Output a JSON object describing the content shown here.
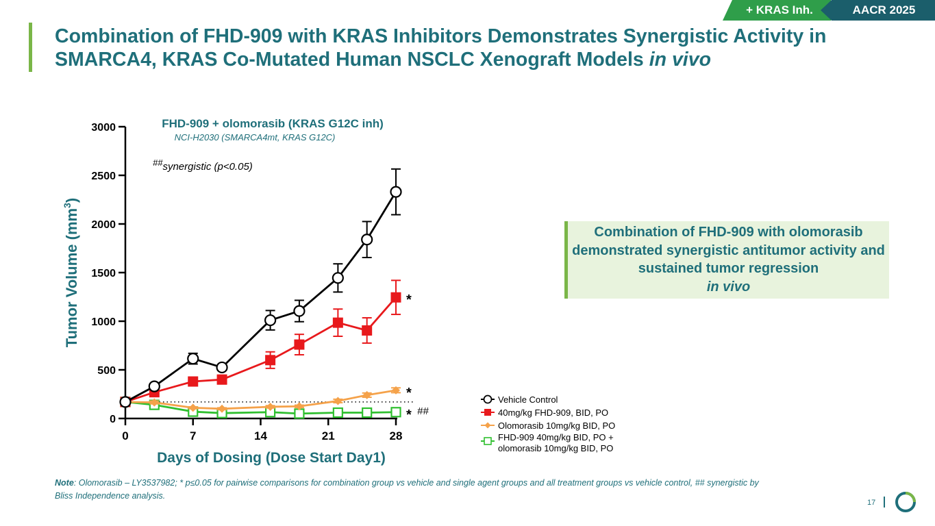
{
  "header": {
    "tag_kras": "+ KRAS Inh.",
    "tag_conference": "AACR 2025",
    "title_main": "Combination of FHD-909 with KRAS Inhibitors Demonstrates Synergistic Activity in SMARCA4, KRAS Co-Mutated Human NSCLC Xenograft Models ",
    "title_italic": "in vivo"
  },
  "callout": {
    "text": "Combination of FHD-909 with olomorasib demonstrated synergistic antitumor activity and sustained tumor regression ",
    "italic": "in vivo"
  },
  "footer": {
    "note_label": "Note",
    "note_text": ": Olomorasib – LY3537982; * p≤0.05 for pairwise comparisons for combination group vs vehicle and single agent groups and all treatment groups vs vehicle control, ## synergistic by Bliss Independence analysis.",
    "page_number": "17"
  },
  "chart_data": {
    "type": "line",
    "title": "FHD-909 + olomorasib (KRAS G12C inh)",
    "subtitle": "NCI-H2030 (SMARCA4mt, KRAS G12C)",
    "annotation_mark": "##",
    "annotation_text": "synergistic (p<0.05)",
    "xlabel": "Days of Dosing (Dose Start Day1)",
    "ylabel_text": "Tumor Volume (mm",
    "ylabel_sup": "3",
    "ylabel_close": ")",
    "xlim": [
      0,
      28
    ],
    "ylim": [
      0,
      3000
    ],
    "x_ticks": [
      0,
      7,
      14,
      21,
      28
    ],
    "y_ticks": [
      0,
      500,
      1000,
      1500,
      2000,
      2500,
      3000
    ],
    "baseline_dotted": 170,
    "series": [
      {
        "name": "Vehicle Control",
        "color": "#000000",
        "marker": "circle-open",
        "x": [
          0,
          3,
          7,
          10,
          15,
          18,
          22,
          25,
          28
        ],
        "y": [
          170,
          330,
          615,
          525,
          1010,
          1105,
          1445,
          1840,
          2330
        ],
        "err": [
          20,
          30,
          55,
          30,
          100,
          110,
          145,
          185,
          235
        ],
        "end_label": ""
      },
      {
        "name": "40mg/kg FHD-909, BID, PO",
        "color": "#e8191c",
        "marker": "square-filled",
        "x": [
          0,
          3,
          7,
          10,
          15,
          18,
          22,
          25,
          28
        ],
        "y": [
          170,
          270,
          380,
          400,
          600,
          760,
          985,
          905,
          1245
        ],
        "err": [
          20,
          40,
          45,
          45,
          85,
          105,
          140,
          130,
          175
        ],
        "end_label": "*"
      },
      {
        "name": "Olomorasib 10mg/kg BID, PO",
        "color": "#f5a24a",
        "marker": "diamond-filled",
        "x": [
          0,
          3,
          7,
          10,
          15,
          18,
          22,
          25,
          28
        ],
        "y": [
          170,
          165,
          110,
          100,
          120,
          125,
          180,
          240,
          290
        ],
        "err": [
          15,
          15,
          10,
          10,
          12,
          12,
          18,
          22,
          25
        ],
        "end_label": "*"
      },
      {
        "name": "FHD-909 40mg/kg BID, PO + olomorasib 10mg/kg BID, PO",
        "legend_line1": "FHD-909 40mg/kg BID, PO +",
        "legend_line2": "olomorasib 10mg/kg BID, PO",
        "color": "#2fbf2f",
        "marker": "square-open",
        "x": [
          0,
          3,
          7,
          10,
          15,
          18,
          22,
          25,
          28
        ],
        "y": [
          170,
          140,
          70,
          55,
          65,
          50,
          60,
          60,
          65
        ],
        "err": [
          15,
          15,
          10,
          8,
          8,
          8,
          8,
          8,
          8
        ],
        "end_label": "*",
        "end_label_extra": "##"
      }
    ],
    "legend_position": "bottom-right"
  }
}
